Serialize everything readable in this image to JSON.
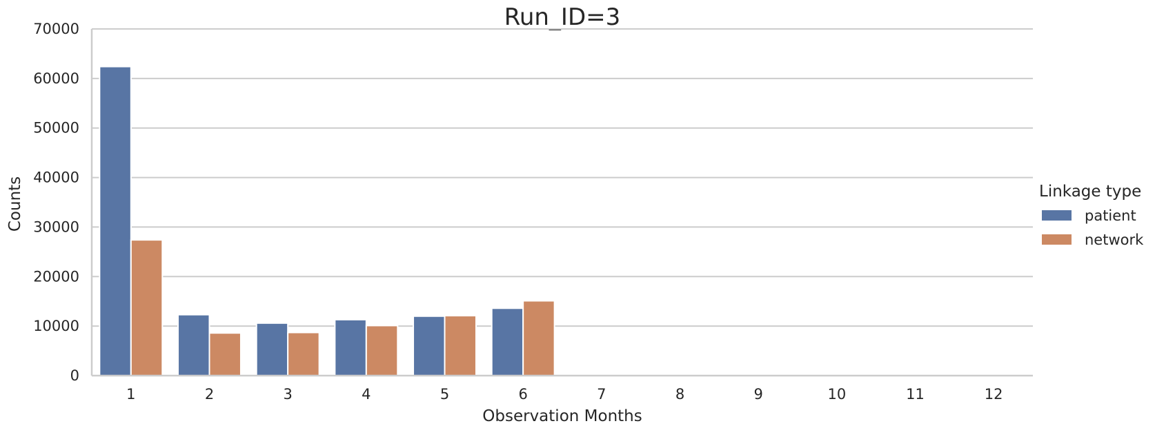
{
  "chart_data": {
    "type": "bar",
    "title": "Run_ID=3",
    "xlabel": "Observation Months",
    "ylabel": "Counts",
    "categories": [
      "1",
      "2",
      "3",
      "4",
      "5",
      "6",
      "7",
      "8",
      "9",
      "10",
      "11",
      "12"
    ],
    "ylim": [
      0,
      70000
    ],
    "yticks": [
      0,
      10000,
      20000,
      30000,
      40000,
      50000,
      60000,
      70000
    ],
    "grid": "horizontal",
    "legend": {
      "title": "Linkage type",
      "placement": "right"
    },
    "series": [
      {
        "name": "patient",
        "color": "#5875a4",
        "values": [
          62400,
          12300,
          10600,
          11300,
          12000,
          13600,
          0,
          0,
          0,
          0,
          0,
          0
        ]
      },
      {
        "name": "network",
        "color": "#cc8963",
        "values": [
          27400,
          8600,
          8700,
          10100,
          12100,
          15100,
          0,
          0,
          0,
          0,
          0,
          0
        ]
      }
    ]
  }
}
